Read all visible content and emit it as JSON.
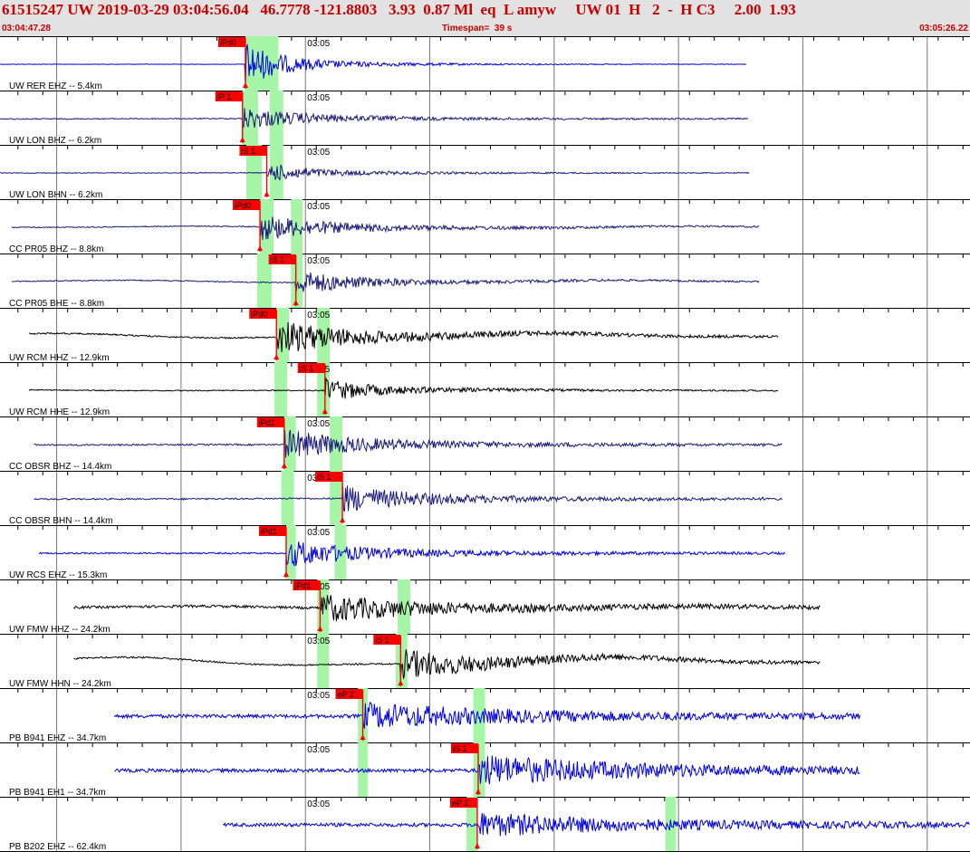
{
  "header": {
    "title": "61515247 UW 2019-03-29 03:04:56.04   46.7778 -121.8803   3.93  0.87 Ml  eq  L amyw     UW 01  H   2  -  H C3     2.00  1.93",
    "start_time": "03:04:47.28",
    "timespan": "Timespan=  39 s",
    "end_time": "03:05:26.22"
  },
  "colors": {
    "header_text": "#c80000",
    "header_bg": "#e2e2e2",
    "blue": "#0000e6",
    "navy": "#1a1a7a",
    "black": "#000000",
    "pick_box": "#ff0000",
    "highlight": "#a6f5a6"
  },
  "chart_data": {
    "type": "seismogram",
    "start_time": "03:04:47.28",
    "end_time": "03:05:26.22",
    "timespan_s": 39,
    "minute_label": "03:05",
    "traces": [
      {
        "station": "UW RER EHZ -- 5.4km",
        "color": "blue",
        "start": 0.0,
        "end": 0.77,
        "pick": {
          "label": "iPd0",
          "t": 0.253
        },
        "hl": [
          0.253,
          0.283
        ],
        "hl2": [
          0.278,
          0.287
        ],
        "amp": 0.9,
        "coda": 0.12,
        "noise": 0.008,
        "base_wave": 0
      },
      {
        "station": "UW LON BHZ -- 6.2km",
        "color": "navy",
        "start": 0.0,
        "end": 0.772,
        "pick": {
          "label": "iP 1",
          "t": 0.25
        },
        "hl": [
          0.25,
          0.266
        ],
        "hl2": [
          0.278,
          0.292
        ],
        "amp": 0.45,
        "coda": 0.2,
        "noise": 0.02,
        "base_wave": 0.03
      },
      {
        "station": "UW LON BHN -- 6.2km",
        "color": "navy",
        "start": 0.0,
        "end": 0.773,
        "pick": {
          "label": "iS 1",
          "t": 0.275
        },
        "hl": [
          0.254,
          0.27
        ],
        "hl2": [
          0.278,
          0.292
        ],
        "amp": 0.4,
        "coda": 0.15,
        "noise": 0.015,
        "base_wave": 0.01
      },
      {
        "station": "CC PR05 BHZ -- 8.8km",
        "color": "navy",
        "start": 0.012,
        "end": 0.783,
        "pick": {
          "label": "iPd0",
          "t": 0.268
        },
        "hl": [
          0.268,
          0.282
        ],
        "hl2": [
          0.3,
          0.312
        ],
        "amp": 0.55,
        "coda": 0.22,
        "noise": 0.02,
        "base_wave": 0.08
      },
      {
        "station": "CC PR05 BHE -- 8.8km",
        "color": "navy",
        "start": 0.012,
        "end": 0.783,
        "pick": {
          "label": "iS 1",
          "t": 0.305
        },
        "hl": [
          0.265,
          0.28
        ],
        "hl2": [
          0.3,
          0.312
        ],
        "amp": 0.5,
        "coda": 0.2,
        "noise": 0.02,
        "base_wave": 0.1
      },
      {
        "station": "UW RCM HHZ -- 12.9km",
        "color": "black",
        "start": 0.03,
        "end": 0.803,
        "pick": {
          "label": "iPd0",
          "t": 0.285
        },
        "hl": [
          0.285,
          0.298
        ],
        "hl2": [
          0.327,
          0.34
        ],
        "amp": 0.7,
        "coda": 0.25,
        "noise": 0.03,
        "base_wave": 0.2
      },
      {
        "station": "UW RCM HHE -- 12.9km",
        "color": "black",
        "start": 0.03,
        "end": 0.803,
        "pick": {
          "label": "iS 1",
          "t": 0.335
        },
        "hl": [
          0.283,
          0.296
        ],
        "hl2": [
          0.327,
          0.34
        ],
        "amp": 0.45,
        "coda": 0.18,
        "noise": 0.02,
        "base_wave": 0.04
      },
      {
        "station": "CC OBSR BHZ -- 14.4km",
        "color": "navy",
        "start": 0.035,
        "end": 0.807,
        "pick": {
          "label": "iPd1",
          "t": 0.293
        },
        "hl": [
          0.293,
          0.305
        ],
        "hl2": [
          0.34,
          0.353
        ],
        "amp": 0.6,
        "coda": 0.25,
        "noise": 0.03,
        "base_wave": 0.03
      },
      {
        "station": "CC OBSR BHN -- 14.4km",
        "color": "navy",
        "start": 0.035,
        "end": 0.807,
        "pick": {
          "label": "iS 1",
          "t": 0.353
        },
        "hl": [
          0.29,
          0.303
        ],
        "hl2": [
          0.34,
          0.353
        ],
        "amp": 0.55,
        "coda": 0.25,
        "noise": 0.03,
        "base_wave": 0.03
      },
      {
        "station": "UW RCS EHZ -- 15.3km",
        "color": "blue",
        "start": 0.04,
        "end": 0.81,
        "pick": {
          "label": "iPd1",
          "t": 0.295
        },
        "hl": [
          0.295,
          0.305
        ],
        "hl2": [
          0.345,
          0.357
        ],
        "amp": 0.55,
        "coda": 0.25,
        "noise": 0.03,
        "base_wave": 0
      },
      {
        "station": "UW FMW HHZ -- 24.2km",
        "color": "black",
        "start": 0.076,
        "end": 0.846,
        "pick": {
          "label": "iPd1",
          "t": 0.33
        },
        "hl": [
          0.327,
          0.339
        ],
        "hl2": [
          0.41,
          0.423
        ],
        "amp": 0.55,
        "coda": 0.35,
        "noise": 0.05,
        "base_wave": 0.1
      },
      {
        "station": "UW FMW HHN -- 24.2km",
        "color": "black",
        "start": 0.076,
        "end": 0.846,
        "pick": {
          "label": "iS 1",
          "t": 0.413
        },
        "hl": [
          0.327,
          0.339
        ],
        "hl2": [
          0.408,
          0.42
        ],
        "amp": 0.6,
        "coda": 0.3,
        "noise": 0.03,
        "base_wave": 0.35
      },
      {
        "station": "PB B941 EHZ -- 34.7km",
        "color": "blue",
        "start": 0.118,
        "end": 0.887,
        "pick": {
          "label": "eP 2",
          "t": 0.374
        },
        "hl": [
          0.369,
          0.379
        ],
        "hl2": [
          0.488,
          0.5
        ],
        "amp": 0.5,
        "coda": 0.5,
        "noise": 0.07,
        "base_wave": 0
      },
      {
        "station": "PB B941 EH1 -- 34.7km",
        "color": "blue",
        "start": 0.118,
        "end": 0.887,
        "pick": {
          "label": "iS 1",
          "t": 0.493
        },
        "hl": [
          0.369,
          0.379
        ],
        "hl2": [
          0.488,
          0.5
        ],
        "amp": 0.6,
        "coda": 0.5,
        "noise": 0.07,
        "base_wave": 0
      },
      {
        "station": "PB B202 EHZ -- 62.4km",
        "color": "blue",
        "start": 0.23,
        "end": 1.0,
        "pick": {
          "label": "eP 2",
          "t": 0.492
        },
        "hl": [
          0.481,
          0.492
        ],
        "hl2": [
          0.686,
          0.697
        ],
        "amp": 0.45,
        "coda": 0.5,
        "noise": 0.07,
        "base_wave": 0
      }
    ]
  }
}
